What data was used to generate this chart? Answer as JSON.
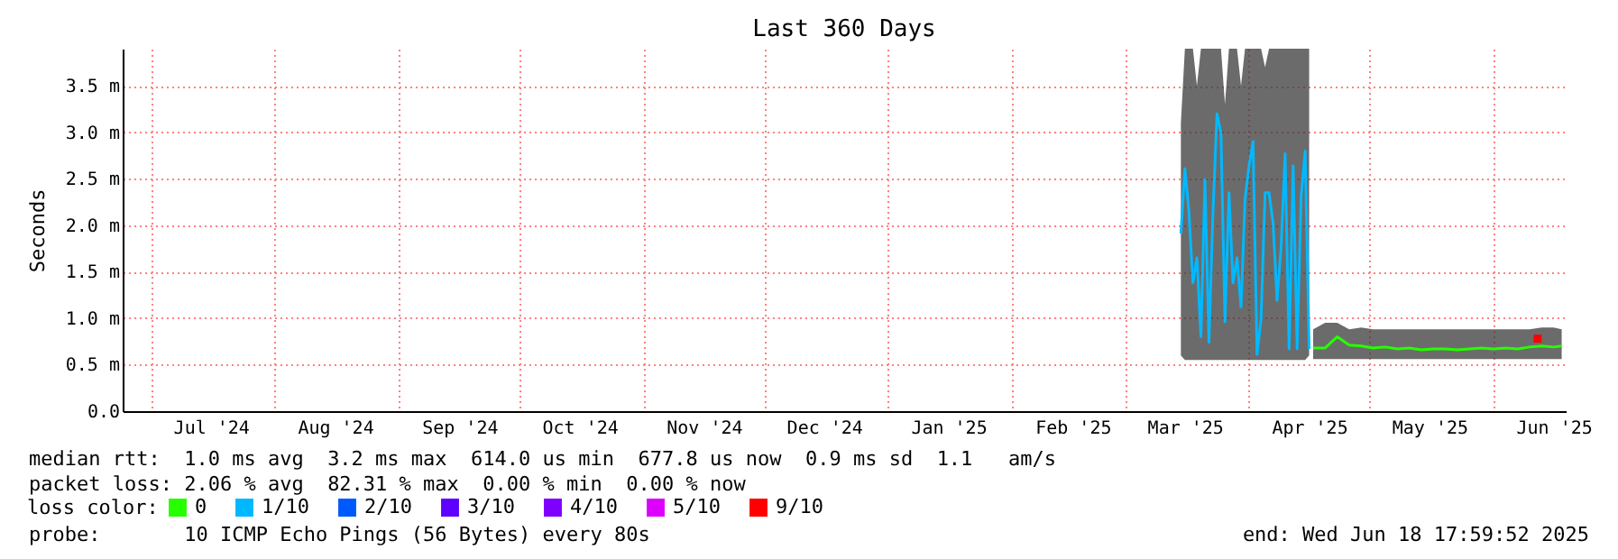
{
  "chart_data": {
    "type": "line",
    "title": "Last 360 Days",
    "ylabel": "Seconds",
    "legend_title": "loss color:",
    "legend": "bottom",
    "grid": true,
    "xlim": [
      "2024-06-24",
      "2025-06-19"
    ],
    "xticks": [
      {
        "value": "2024-07-01",
        "label": null
      },
      {
        "value": "2024-07-16",
        "label": "Jul '24"
      },
      {
        "value": "2024-08-01",
        "label": null
      },
      {
        "value": "2024-08-16",
        "label": "Aug '24"
      },
      {
        "value": "2024-09-01",
        "label": null
      },
      {
        "value": "2024-09-16",
        "label": "Sep '24"
      },
      {
        "value": "2024-10-01",
        "label": null
      },
      {
        "value": "2024-10-16",
        "label": "Oct '24"
      },
      {
        "value": "2024-11-01",
        "label": null
      },
      {
        "value": "2024-11-16",
        "label": "Nov '24"
      },
      {
        "value": "2024-12-01",
        "label": null
      },
      {
        "value": "2024-12-16",
        "label": "Dec '24"
      },
      {
        "value": "2025-01-01",
        "label": null
      },
      {
        "value": "2025-01-16",
        "label": "Jan '25"
      },
      {
        "value": "2025-02-01",
        "label": null
      },
      {
        "value": "2025-02-16",
        "label": "Feb '25"
      },
      {
        "value": "2025-03-01",
        "label": null
      },
      {
        "value": "2025-03-16",
        "label": "Mar '25"
      },
      {
        "value": "2025-04-01",
        "label": null
      },
      {
        "value": "2025-04-16",
        "label": "Apr '25"
      },
      {
        "value": "2025-05-01",
        "label": null
      },
      {
        "value": "2025-05-16",
        "label": "May '25"
      },
      {
        "value": "2025-06-01",
        "label": null
      },
      {
        "value": "2025-06-16",
        "label": "Jun '25"
      }
    ],
    "ylim": [
      0,
      3.9
    ],
    "yticks": [
      {
        "value": 0,
        "label": "0.0"
      },
      {
        "value": 0.5,
        "label": "0.5 m"
      },
      {
        "value": 1,
        "label": "1.0 m"
      },
      {
        "value": 1.5,
        "label": "1.5 m"
      },
      {
        "value": 2,
        "label": "2.0 m"
      },
      {
        "value": 2.5,
        "label": "2.5 m"
      },
      {
        "value": 3,
        "label": "3.0 m"
      },
      {
        "value": 3.5,
        "label": "3.5 m"
      }
    ],
    "series": [
      {
        "name": "0",
        "color": "#26ff00",
        "x": [
          "2025-04-17",
          "2025-04-20",
          "2025-04-23",
          "2025-04-26",
          "2025-04-29",
          "2025-05-02",
          "2025-05-05",
          "2025-05-08",
          "2025-05-11",
          "2025-05-14",
          "2025-05-17",
          "2025-05-20",
          "2025-05-23",
          "2025-05-26",
          "2025-05-29",
          "2025-06-01",
          "2025-06-04",
          "2025-06-07",
          "2025-06-10",
          "2025-06-13",
          "2025-06-16",
          "2025-06-18"
        ],
        "values": [
          0.68,
          0.68,
          0.8,
          0.71,
          0.7,
          0.68,
          0.69,
          0.67,
          0.68,
          0.66,
          0.67,
          0.67,
          0.66,
          0.67,
          0.68,
          0.67,
          0.68,
          0.67,
          0.69,
          0.7,
          0.69,
          0.7
        ],
        "lower": [
          0.56,
          0.56,
          0.56,
          0.56,
          0.56,
          0.56,
          0.56,
          0.56,
          0.56,
          0.56,
          0.56,
          0.56,
          0.56,
          0.56,
          0.56,
          0.56,
          0.56,
          0.56,
          0.56,
          0.56,
          0.56,
          0.56
        ],
        "upper": [
          0.88,
          0.95,
          0.95,
          0.88,
          0.9,
          0.88,
          0.88,
          0.88,
          0.88,
          0.88,
          0.88,
          0.88,
          0.88,
          0.88,
          0.88,
          0.88,
          0.88,
          0.88,
          0.88,
          0.9,
          0.9,
          0.88
        ]
      },
      {
        "name": "1/10",
        "color": "#00b8ff",
        "x": [
          "2025-03-15",
          "2025-03-16",
          "2025-03-17",
          "2025-03-18",
          "2025-03-19",
          "2025-03-20",
          "2025-03-21",
          "2025-03-22",
          "2025-03-23",
          "2025-03-24",
          "2025-03-25",
          "2025-03-26",
          "2025-03-27",
          "2025-03-28",
          "2025-03-29",
          "2025-03-30",
          "2025-03-31",
          "2025-04-01",
          "2025-04-02",
          "2025-04-03",
          "2025-04-04",
          "2025-04-05",
          "2025-04-06",
          "2025-04-07",
          "2025-04-08",
          "2025-04-09",
          "2025-04-10",
          "2025-04-11",
          "2025-04-12",
          "2025-04-13",
          "2025-04-14",
          "2025-04-15",
          "2025-04-16"
        ],
        "values": [
          1.91,
          2.61,
          2.15,
          1.38,
          1.65,
          0.8,
          2.49,
          0.74,
          2.13,
          3.2,
          2.99,
          0.96,
          2.35,
          1.38,
          1.65,
          1.12,
          2.28,
          2.64,
          2.9,
          0.61,
          0.99,
          2.35,
          2.35,
          2.02,
          1.19,
          1.77,
          2.77,
          0.67,
          2.64,
          0.67,
          2.31,
          2.8,
          0.67
        ],
        "lower": [
          0.6,
          0.55,
          0.55,
          0.55,
          0.55,
          0.55,
          0.55,
          0.55,
          0.55,
          0.55,
          0.55,
          0.55,
          0.55,
          0.55,
          0.55,
          0.55,
          0.55,
          0.55,
          0.55,
          0.55,
          0.55,
          0.55,
          0.55,
          0.55,
          0.55,
          0.55,
          0.55,
          0.55,
          0.55,
          0.55,
          0.55,
          0.55,
          0.6
        ],
        "upper": [
          3.1,
          3.9,
          3.9,
          3.9,
          3.5,
          3.9,
          3.9,
          3.9,
          3.9,
          3.9,
          3.9,
          3.3,
          3.9,
          3.9,
          3.9,
          3.5,
          3.9,
          3.9,
          3.9,
          3.9,
          3.9,
          3.7,
          3.9,
          3.9,
          3.9,
          3.9,
          3.9,
          3.9,
          3.9,
          3.9,
          3.9,
          3.9,
          3.9
        ]
      },
      {
        "name": "2/10",
        "type": "scatter",
        "color": "#0059ff"
      },
      {
        "name": "3/10",
        "type": "scatter",
        "color": "#5e00ff"
      },
      {
        "name": "4/10",
        "type": "scatter",
        "color": "#7e00ff"
      },
      {
        "name": "5/10",
        "type": "scatter",
        "color": "#dd00ff"
      },
      {
        "name": "9/10",
        "type": "scatter",
        "color": "#ff0000",
        "x": [
          "2025-06-12"
        ],
        "values": [
          0.78
        ]
      }
    ],
    "annotations": [
      "median rtt:  1.0 ms avg  3.2 ms max  614.0 us min  677.8 us now  0.9 ms sd  1.1   am/s",
      "packet loss: 2.06 % avg  82.31 % max  0.00 % min  0.00 % now",
      "probe:       10 ICMP Echo Pings (56 Bytes) every 80s",
      "end: Wed Jun 18 17:59:52 2025"
    ]
  }
}
